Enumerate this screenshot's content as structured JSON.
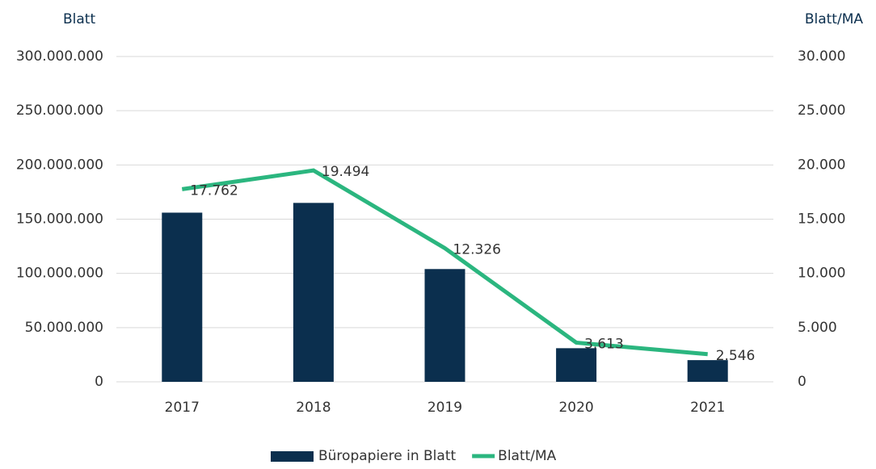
{
  "chart_data": {
    "type": "bar-line",
    "y_label": "Blatt",
    "y2_label": "Blatt/MA",
    "categories": [
      "2017",
      "2018",
      "2019",
      "2020",
      "2021"
    ],
    "series": [
      {
        "name": "Büropapiere in Blatt",
        "type": "bar",
        "color": "#0b2f4e",
        "values": [
          156000000,
          165000000,
          104000000,
          31000000,
          20000000
        ]
      },
      {
        "name": "Blatt/MA",
        "type": "line",
        "axis": "y2",
        "color": "#2bb67f",
        "values": [
          17762,
          19494,
          12326,
          3613,
          2546
        ],
        "value_labels": [
          "17.762",
          "19.494",
          "12.326",
          "3.613",
          "2.546"
        ]
      }
    ],
    "ylim": [
      0,
      300000000
    ],
    "yticks": [
      0,
      {
        "value": 50000000,
        "label": "50.000.000"
      },
      {
        "value": 100000000,
        "label": "100.000.000"
      },
      {
        "value": 150000000,
        "label": "150.000.000"
      },
      {
        "value": 200000000,
        "label": "200.000.000"
      },
      {
        "value": 250000000,
        "label": "250.000.000"
      },
      {
        "value": 300000000,
        "label": "300.000.000"
      }
    ],
    "y2lim": [
      0,
      30000
    ],
    "y2ticks": [
      0,
      {
        "value": 5000,
        "label": "5.000"
      },
      {
        "value": 10000,
        "label": "10.000"
      },
      {
        "value": 15000,
        "label": "15.000"
      },
      {
        "value": 20000,
        "label": "20.000"
      },
      {
        "value": 25000,
        "label": "25.000"
      },
      {
        "value": 30000,
        "label": "30.000"
      }
    ],
    "grid": true,
    "legend": "bottom"
  }
}
